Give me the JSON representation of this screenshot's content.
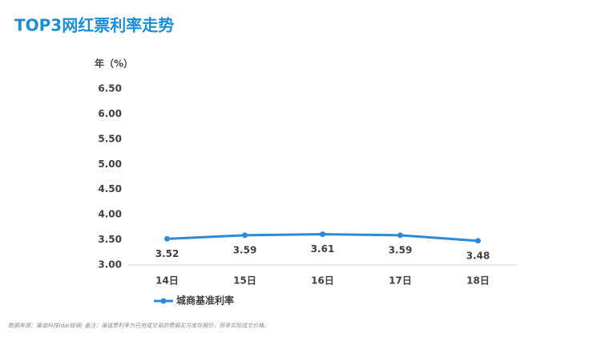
{
  "chart_data": {
    "type": "line",
    "title": "TOP3网红票利率走势",
    "y_label": "年（%）",
    "categories": [
      "14日",
      "15日",
      "16日",
      "17日",
      "18日"
    ],
    "series": [
      {
        "name": "城商基准利率",
        "color": "#2e8ad8",
        "values": [
          3.52,
          3.59,
          3.61,
          3.59,
          3.48
        ]
      }
    ],
    "ylim": [
      3,
      6.5
    ],
    "yticks": [
      {
        "value": 3,
        "label": "3.00"
      },
      {
        "value": 3.5,
        "label": "3.50"
      },
      {
        "value": 4,
        "label": "4.00"
      },
      {
        "value": 4.5,
        "label": "4.50"
      },
      {
        "value": 5,
        "label": "5.00"
      },
      {
        "value": 5.5,
        "label": "5.50"
      },
      {
        "value": 6,
        "label": "6.00"
      },
      {
        "value": 6.5,
        "label": "6.50"
      }
    ],
    "grid": false,
    "legend": "bottom-left",
    "footnote": "数据来源：渠道科技(dai钱塔) 备注：渠道票利率为已完成交易的票据买方库存报价，而非实际成交价格。"
  }
}
